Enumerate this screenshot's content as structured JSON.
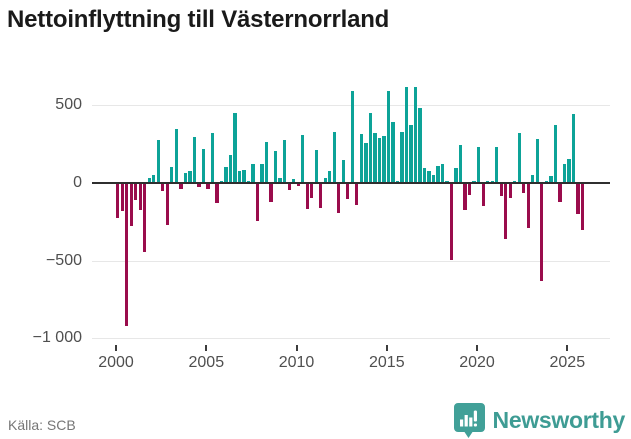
{
  "title": "Nettoinflyttning till Västernorrland",
  "footer": {
    "source": "Källa: SCB",
    "brand_name": "Newsworthy"
  },
  "colors": {
    "positive_bar": "#0da398",
    "negative_bar": "#9a0c4c",
    "zero_axis": "#2f2f2f",
    "gridline": "#e7e7e7",
    "tick_label": "#4f4f4f",
    "brand_teal": "#3e9c94",
    "title_text": "#1a1a1a",
    "source_text": "#767676"
  },
  "chart_data": {
    "type": "bar",
    "title": "Nettoinflyttning till Västernorrland",
    "frequency": "quarterly",
    "x_start": "2000K1",
    "x_end": "2025K4",
    "xlabel": "",
    "ylabel": "",
    "grid": "horizontal",
    "ylim": [
      -1050,
      700
    ],
    "yticks": [
      500,
      0,
      -500,
      -1000
    ],
    "ytick_labels": [
      "500",
      "0",
      "−500",
      "−1 000"
    ],
    "xticks": [
      2000,
      2005,
      2010,
      2015,
      2020,
      2025
    ],
    "xtick_labels": [
      "2000",
      "2005",
      "2010",
      "2015",
      "2020",
      "2025"
    ],
    "categories": [
      "2000K1",
      "2000K2",
      "2000K3",
      "2000K4",
      "2001K1",
      "2001K2",
      "2001K3",
      "2001K4",
      "2002K1",
      "2002K2",
      "2002K3",
      "2002K4",
      "2003K1",
      "2003K2",
      "2003K3",
      "2003K4",
      "2004K1",
      "2004K2",
      "2004K3",
      "2004K4",
      "2005K1",
      "2005K2",
      "2005K3",
      "2005K4",
      "2006K1",
      "2006K2",
      "2006K3",
      "2006K4",
      "2007K1",
      "2007K2",
      "2007K3",
      "2007K4",
      "2008K1",
      "2008K2",
      "2008K3",
      "2008K4",
      "2009K1",
      "2009K2",
      "2009K3",
      "2009K4",
      "2010K1",
      "2010K2",
      "2010K3",
      "2010K4",
      "2011K1",
      "2011K2",
      "2011K3",
      "2011K4",
      "2012K1",
      "2012K2",
      "2012K3",
      "2012K4",
      "2013K1",
      "2013K2",
      "2013K3",
      "2013K4",
      "2014K1",
      "2014K2",
      "2014K3",
      "2014K4",
      "2015K1",
      "2015K2",
      "2015K3",
      "2015K4",
      "2016K1",
      "2016K2",
      "2016K3",
      "2016K4",
      "2017K1",
      "2017K2",
      "2017K3",
      "2017K4",
      "2018K1",
      "2018K2",
      "2018K3",
      "2018K4",
      "2019K1",
      "2019K2",
      "2019K3",
      "2019K4",
      "2020K1",
      "2020K2",
      "2020K3",
      "2020K4",
      "2021K1",
      "2021K2",
      "2021K3",
      "2021K4",
      "2022K1",
      "2022K2",
      "2022K3",
      "2022K4",
      "2023K1",
      "2023K2",
      "2023K3",
      "2023K4",
      "2024K1",
      "2024K2",
      "2024K3",
      "2024K4",
      "2025K1",
      "2025K2",
      "2025K3",
      "2025K4"
    ],
    "values": [
      -220,
      -175,
      -915,
      -270,
      -100,
      -165,
      -440,
      30,
      55,
      275,
      -45,
      -265,
      105,
      350,
      -30,
      65,
      80,
      295,
      -20,
      220,
      -35,
      320,
      -120,
      10,
      105,
      180,
      450,
      75,
      85,
      10,
      125,
      -235,
      125,
      265,
      -115,
      205,
      30,
      280,
      -40,
      25,
      -15,
      310,
      -160,
      -90,
      215,
      -155,
      30,
      80,
      330,
      -185,
      150,
      -95,
      595,
      -135,
      315,
      255,
      450,
      320,
      290,
      305,
      590,
      395,
      10,
      330,
      620,
      375,
      615,
      485,
      95,
      80,
      55,
      110,
      120,
      10,
      -490,
      100,
      245,
      -165,
      -70,
      10,
      230,
      -140,
      15,
      10,
      235,
      -75,
      -355,
      -90,
      10,
      320,
      -55,
      -285,
      55,
      285,
      -625,
      10,
      45,
      375,
      -115,
      120,
      155,
      445,
      -195,
      -295
    ],
    "positive_color": "#0da398",
    "negative_color": "#9a0c4c"
  }
}
